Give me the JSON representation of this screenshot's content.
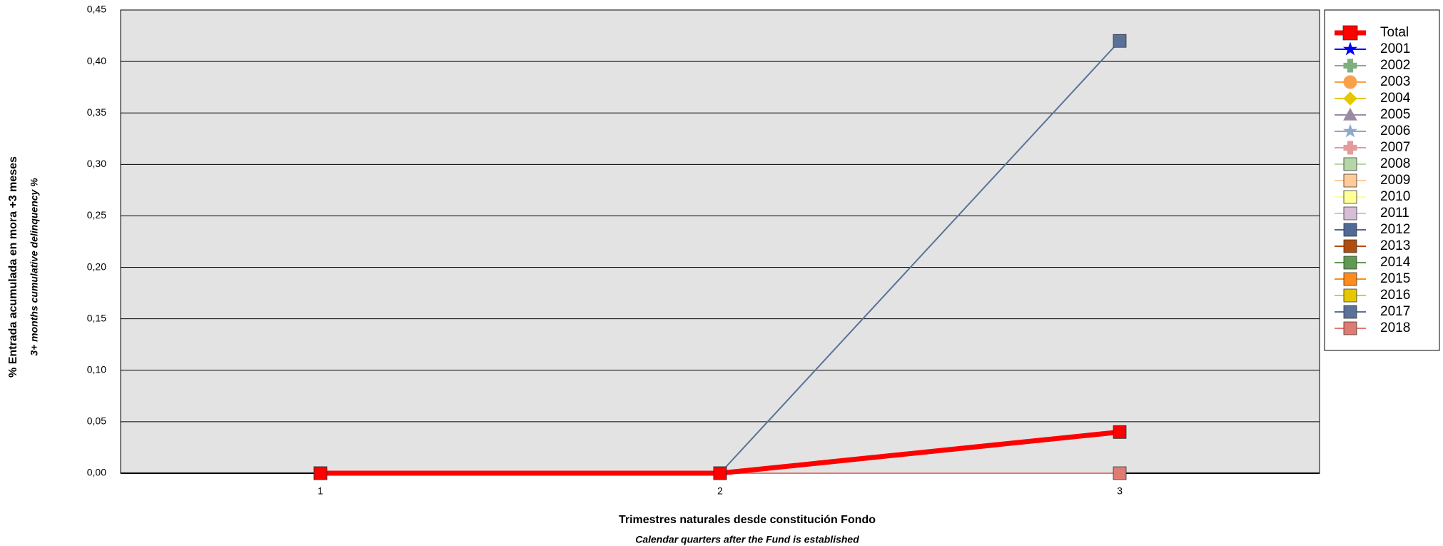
{
  "chart_data": {
    "type": "line",
    "y_title": "% Entrada acumulada en mora +3 meses",
    "y_subtitle": "3+ months cumulative delinquency %",
    "x_title": "Trimestres naturales desde constitución Fondo",
    "x_subtitle": "Calendar quarters after the Fund is established",
    "categories": [
      "1",
      "2",
      "3"
    ],
    "ylim": [
      0,
      0.45
    ],
    "yticks": [
      {
        "value": 0,
        "label": "0,00"
      },
      {
        "value": 0.05,
        "label": "0,05"
      },
      {
        "value": 0.1,
        "label": "0,10"
      },
      {
        "value": 0.15,
        "label": "0,15"
      },
      {
        "value": 0.2,
        "label": "0,20"
      },
      {
        "value": 0.25,
        "label": "0,25"
      },
      {
        "value": 0.3,
        "label": "0,30"
      },
      {
        "value": 0.35,
        "label": "0,35"
      },
      {
        "value": 0.4,
        "label": "0,40"
      },
      {
        "value": 0.45,
        "label": "0,45"
      }
    ],
    "grid": true,
    "legend": "right",
    "series": [
      {
        "name": "Total",
        "color": "#ff0000",
        "marker": "square",
        "values": [
          0,
          0,
          0.04
        ]
      },
      {
        "name": "2001",
        "color": "#0000ff",
        "marker": "star",
        "values": [
          null,
          null,
          null
        ]
      },
      {
        "name": "2002",
        "color": "#7fae7f",
        "marker": "plus",
        "values": [
          null,
          null,
          null
        ]
      },
      {
        "name": "2003",
        "color": "#f9a04a",
        "marker": "circle",
        "values": [
          null,
          null,
          null
        ]
      },
      {
        "name": "2004",
        "color": "#e6c800",
        "marker": "diamond",
        "values": [
          null,
          null,
          null
        ]
      },
      {
        "name": "2005",
        "color": "#9c8aa5",
        "marker": "triangle",
        "values": [
          null,
          null,
          null
        ]
      },
      {
        "name": "2006",
        "color": "#8fa8cc",
        "marker": "star",
        "values": [
          null,
          null,
          null
        ]
      },
      {
        "name": "2007",
        "color": "#e59b9b",
        "marker": "plus",
        "values": [
          null,
          null,
          null
        ]
      },
      {
        "name": "2008",
        "color": "#b5d7a8",
        "marker": "square",
        "values": [
          null,
          null,
          null
        ]
      },
      {
        "name": "2009",
        "color": "#ffcc99",
        "marker": "square",
        "values": [
          null,
          null,
          null
        ]
      },
      {
        "name": "2010",
        "color": "#ffff99",
        "marker": "square",
        "values": [
          null,
          null,
          null
        ]
      },
      {
        "name": "2011",
        "color": "#d6bfd6",
        "marker": "square",
        "values": [
          null,
          null,
          null
        ]
      },
      {
        "name": "2012",
        "color": "#4f6a96",
        "marker": "square",
        "values": [
          null,
          null,
          null
        ]
      },
      {
        "name": "2013",
        "color": "#b04e0f",
        "marker": "square",
        "values": [
          null,
          null,
          null
        ]
      },
      {
        "name": "2014",
        "color": "#5e9a4f",
        "marker": "square",
        "values": [
          null,
          null,
          null
        ]
      },
      {
        "name": "2015",
        "color": "#ff8c1a",
        "marker": "square",
        "values": [
          null,
          null,
          null
        ]
      },
      {
        "name": "2016",
        "color": "#e6c800",
        "marker": "square",
        "values": [
          null,
          null,
          null
        ]
      },
      {
        "name": "2017",
        "color": "#5a7299",
        "marker": "square",
        "values": [
          0,
          0,
          0.42
        ]
      },
      {
        "name": "2018",
        "color": "#e07b73",
        "marker": "square",
        "values": [
          0,
          0,
          0
        ]
      }
    ]
  }
}
